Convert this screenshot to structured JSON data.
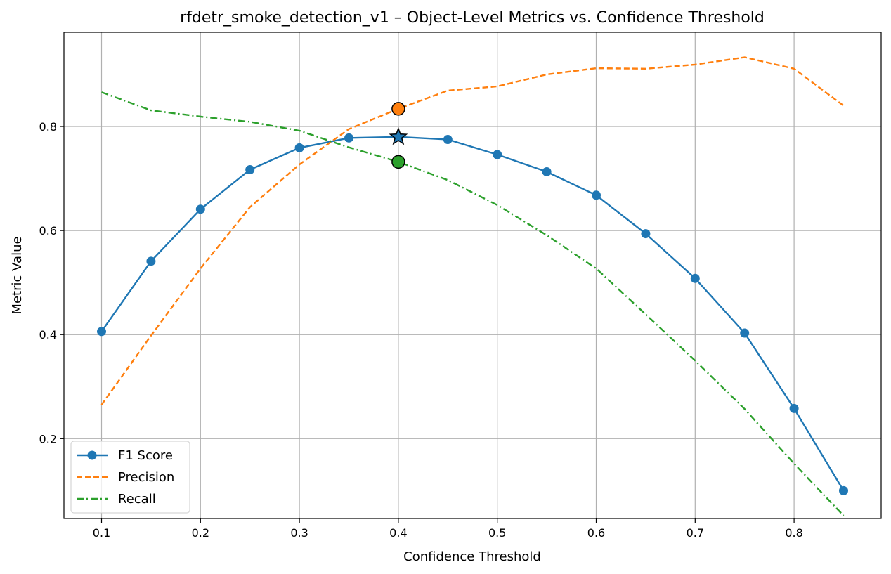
{
  "chart_data": {
    "type": "line",
    "title": "rfdetr_smoke_detection_v1 – Object-Level Metrics vs. Confidence Threshold",
    "xlabel": "Confidence Threshold",
    "ylabel": "Metric Value",
    "xlim": [
      0.062,
      0.888
    ],
    "ylim": [
      0.0465,
      0.981
    ],
    "xticks": [
      0.1,
      0.2,
      0.3,
      0.4,
      0.5,
      0.6,
      0.7,
      0.8
    ],
    "xtick_labels": [
      "0.1",
      "0.2",
      "0.3",
      "0.4",
      "0.5",
      "0.6",
      "0.7",
      "0.8"
    ],
    "yticks": [
      0.2,
      0.4,
      0.6,
      0.8
    ],
    "ytick_labels": [
      "0.2",
      "0.4",
      "0.6",
      "0.8"
    ],
    "grid": true,
    "legend_position": "lower-left",
    "x": [
      0.1,
      0.15,
      0.2,
      0.25,
      0.3,
      0.35,
      0.4,
      0.45,
      0.5,
      0.55,
      0.6,
      0.65,
      0.7,
      0.75,
      0.8,
      0.85
    ],
    "series": [
      {
        "name": "F1 Score",
        "color": "#1f77b4",
        "style": "solid",
        "marker": "circle",
        "values": [
          0.406,
          0.541,
          0.641,
          0.717,
          0.759,
          0.778,
          0.78,
          0.775,
          0.746,
          0.713,
          0.668,
          0.594,
          0.508,
          0.403,
          0.258,
          0.1
        ]
      },
      {
        "name": "Precision",
        "color": "#ff7f0e",
        "style": "dashed",
        "marker": "none",
        "values": [
          0.265,
          0.398,
          0.527,
          0.645,
          0.727,
          0.795,
          0.834,
          0.869,
          0.877,
          0.9,
          0.912,
          0.911,
          0.919,
          0.933,
          0.911,
          0.84
        ]
      },
      {
        "name": "Recall",
        "color": "#2ca02c",
        "style": "dashdot",
        "marker": "none",
        "values": [
          0.866,
          0.831,
          0.819,
          0.809,
          0.792,
          0.76,
          0.732,
          0.697,
          0.649,
          0.591,
          0.527,
          0.439,
          0.35,
          0.257,
          0.152,
          0.052
        ]
      }
    ],
    "highlight": {
      "x": 0.4,
      "points": [
        {
          "series": "F1 Score",
          "y": 0.78,
          "marker": "star",
          "color": "#1f77b4"
        },
        {
          "series": "Precision",
          "y": 0.834,
          "marker": "circle",
          "color": "#ff7f0e"
        },
        {
          "series": "Recall",
          "y": 0.732,
          "marker": "circle",
          "color": "#2ca02c"
        }
      ]
    }
  }
}
